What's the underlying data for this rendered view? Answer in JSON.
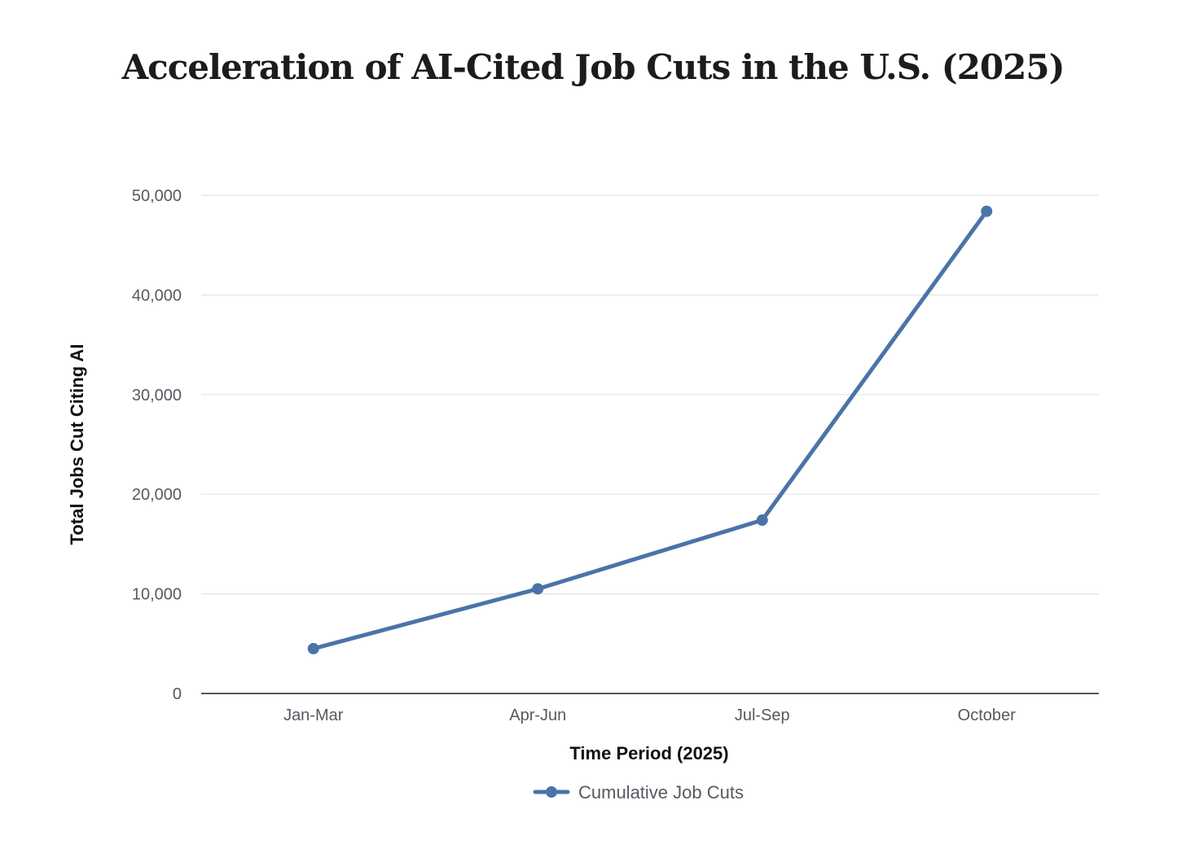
{
  "chart_data": {
    "type": "line",
    "title": "Acceleration of AI-Cited Job Cuts in the U.S. (2025)",
    "xlabel": "Time Period (2025)",
    "ylabel": "Total Jobs Cut Citing AI",
    "categories": [
      "Jan-Mar",
      "Apr-Jun",
      "Jul-Sep",
      "October"
    ],
    "series": [
      {
        "name": "Cumulative Job Cuts",
        "values": [
          4500,
          10500,
          17400,
          48400
        ],
        "color": "#4a74a8"
      }
    ],
    "ylim": [
      0,
      50000
    ],
    "yticks": [
      0,
      10000,
      20000,
      30000,
      40000,
      50000
    ],
    "ytick_labels": [
      "0",
      "10,000",
      "20,000",
      "30,000",
      "40,000",
      "50,000"
    ],
    "grid": true,
    "legend": "bottom-center"
  }
}
